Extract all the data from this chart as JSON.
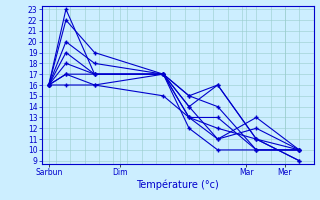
{
  "xlabel": "Température (°c)",
  "bg_color": "#cceeff",
  "grid_color": "#99cccc",
  "line_color": "#0000cc",
  "marker": "+",
  "ylim": [
    9,
    23
  ],
  "yticks": [
    9,
    10,
    11,
    12,
    13,
    14,
    15,
    16,
    17,
    18,
    19,
    20,
    21,
    22,
    23
  ],
  "xtick_labels": [
    "Sarbun",
    "Dim",
    "Mar",
    "Mer"
  ],
  "xtick_positions": [
    10,
    60,
    148,
    175
  ],
  "xlim": [
    5,
    195
  ],
  "series": [
    [
      16,
      23,
      17,
      17,
      12,
      10,
      10,
      10
    ],
    [
      16,
      22,
      19,
      17,
      13,
      13,
      10,
      10
    ],
    [
      16,
      20,
      18,
      17,
      14,
      16,
      11,
      10
    ],
    [
      16,
      19,
      17,
      17,
      15,
      16,
      11,
      9
    ],
    [
      16,
      18,
      17,
      17,
      14,
      11,
      12,
      10
    ],
    [
      16,
      17,
      17,
      17,
      13,
      11,
      13,
      10
    ],
    [
      16,
      17,
      16,
      17,
      15,
      14,
      10,
      10
    ],
    [
      16,
      16,
      16,
      15,
      13,
      12,
      11,
      9
    ]
  ],
  "x_positions": [
    10,
    22,
    42,
    90,
    108,
    128,
    155,
    185
  ]
}
